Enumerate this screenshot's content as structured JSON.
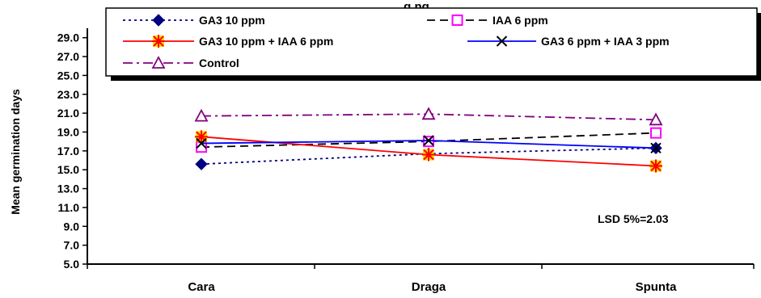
{
  "chart_data": {
    "type": "line",
    "title_partial": "g     ng",
    "ylabel": "Mean germination days",
    "xlabel": "",
    "categories": [
      "Cara",
      "Draga",
      "Spunta"
    ],
    "ylim": [
      5.0,
      30.0
    ],
    "yticks": [
      "5.0",
      "7.0",
      "9.0",
      "11.0",
      "13.0",
      "15.0",
      "17.0",
      "19.0",
      "21.0",
      "23.0",
      "25.0",
      "27.0",
      "29.0"
    ],
    "series": [
      {
        "name": "GA3 10 ppm",
        "values": [
          15.6,
          16.7,
          17.3
        ],
        "color": "#000080",
        "dash": "dotted",
        "marker": "diamond"
      },
      {
        "name": "IAA 6 ppm",
        "values": [
          17.4,
          18.0,
          18.9
        ],
        "color": "#000000",
        "dash": "dashed",
        "marker": "square-magenta"
      },
      {
        "name": "GA3 10 ppm +  IAA 6 ppm",
        "values": [
          18.5,
          16.6,
          15.4
        ],
        "color": "#ff0000",
        "dash": "solid",
        "marker": "star-yellow"
      },
      {
        "name": "GA3 6 ppm + IAA 3 ppm",
        "values": [
          17.8,
          18.1,
          17.3
        ],
        "color": "#0000ff",
        "dash": "solid",
        "marker": "x"
      },
      {
        "name": "Control",
        "values": [
          20.7,
          20.9,
          20.3
        ],
        "color": "#800080",
        "dash": "dashdot",
        "marker": "triangle"
      }
    ],
    "annotation": "LSD 5%=2.03",
    "grid": false,
    "legend_position": "top"
  }
}
